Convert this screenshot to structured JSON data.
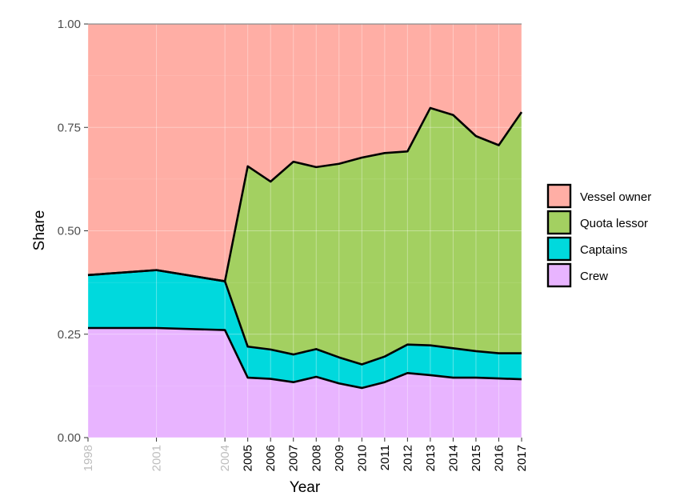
{
  "chart_data": {
    "type": "area",
    "stacked": true,
    "title": "",
    "xlabel": "Year",
    "ylabel": "Share",
    "ylim": [
      0,
      1
    ],
    "yticks": [
      "0.00",
      "0.25",
      "0.50",
      "0.75",
      "1.00"
    ],
    "x": [
      1998,
      2001,
      2004,
      2005,
      2006,
      2007,
      2008,
      2009,
      2010,
      2011,
      2012,
      2013,
      2014,
      2015,
      2016,
      2017
    ],
    "x_tick_labels": [
      "1998",
      "2001",
      "2004",
      "2005",
      "2006",
      "2007",
      "2008",
      "2009",
      "2010",
      "2011",
      "2012",
      "2013",
      "2014",
      "2015",
      "2016",
      "2017"
    ],
    "x_tick_muted": [
      "1998",
      "2001",
      "2004"
    ],
    "grid": true,
    "legend_position": "right",
    "series": [
      {
        "name": "Crew",
        "color": "#e8b4ff",
        "values": [
          0.265,
          0.265,
          0.26,
          0.145,
          0.142,
          0.134,
          0.147,
          0.131,
          0.12,
          0.134,
          0.156,
          0.151,
          0.145,
          0.145,
          0.143,
          0.141
        ]
      },
      {
        "name": "Captains",
        "color": "#00d9dd",
        "values": [
          0.128,
          0.14,
          0.118,
          0.075,
          0.071,
          0.067,
          0.067,
          0.063,
          0.057,
          0.062,
          0.069,
          0.072,
          0.071,
          0.064,
          0.061,
          0.063
        ]
      },
      {
        "name": "Quota lessor",
        "color": "#a3d061",
        "values": [
          0.0,
          0.0,
          0.0,
          0.436,
          0.406,
          0.466,
          0.44,
          0.468,
          0.5,
          0.492,
          0.467,
          0.574,
          0.564,
          0.52,
          0.503,
          0.583
        ]
      },
      {
        "name": "Vessel owner",
        "color": "#ffaea5",
        "values": [
          0.607,
          0.595,
          0.622,
          0.344,
          0.381,
          0.333,
          0.346,
          0.338,
          0.323,
          0.312,
          0.308,
          0.203,
          0.22,
          0.271,
          0.293,
          0.213
        ]
      }
    ],
    "legend_order": [
      "Vessel owner",
      "Quota lessor",
      "Captains",
      "Crew"
    ]
  }
}
